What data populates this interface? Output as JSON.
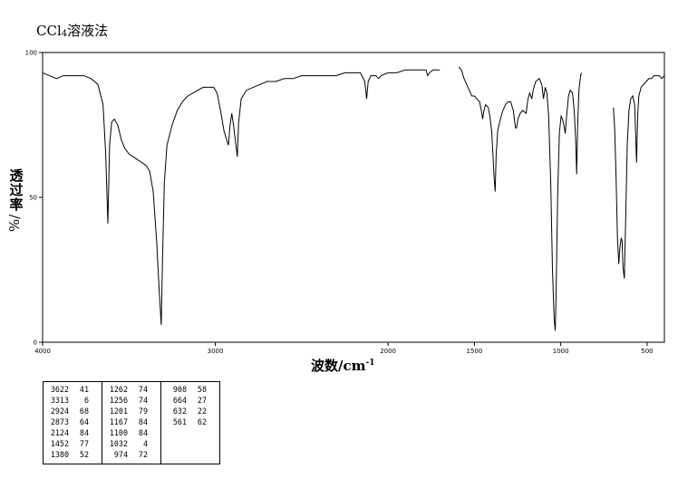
{
  "title": {
    "main": "CCl",
    "sub": "4",
    "suffix": "溶液法"
  },
  "ylabel": {
    "text": "透过率",
    "unit": "%/"
  },
  "xlabel": {
    "text": "波数/cm",
    "sup": "-1"
  },
  "chart_data": {
    "type": "line",
    "xlim": [
      4000,
      400
    ],
    "ylim": [
      0,
      100
    ],
    "x_ticks": [
      4000,
      3000,
      2000,
      1500,
      1000,
      500
    ],
    "x_tick_labels": [
      "4000",
      "3000",
      "2000",
      "1500",
      "1000",
      "500"
    ],
    "y_ticks": [
      0,
      50,
      100
    ],
    "y_tick_labels": [
      "0",
      "50",
      "100"
    ],
    "grid": false,
    "series": [
      {
        "segment": 1,
        "points": [
          [
            4000,
            93
          ],
          [
            3960,
            92
          ],
          [
            3920,
            91
          ],
          [
            3880,
            92
          ],
          [
            3820,
            92
          ],
          [
            3760,
            92
          ],
          [
            3720,
            91
          ],
          [
            3680,
            89
          ],
          [
            3650,
            82
          ],
          [
            3635,
            65
          ],
          [
            3622,
            41
          ],
          [
            3612,
            68
          ],
          [
            3600,
            76
          ],
          [
            3585,
            77
          ],
          [
            3565,
            75
          ],
          [
            3545,
            70
          ],
          [
            3525,
            67
          ],
          [
            3500,
            65
          ],
          [
            3475,
            64
          ],
          [
            3450,
            63
          ],
          [
            3425,
            62
          ],
          [
            3400,
            61
          ],
          [
            3380,
            59
          ],
          [
            3360,
            52
          ],
          [
            3340,
            35
          ],
          [
            3325,
            18
          ],
          [
            3313,
            6
          ],
          [
            3305,
            30
          ],
          [
            3295,
            55
          ],
          [
            3280,
            68
          ],
          [
            3250,
            75
          ],
          [
            3220,
            80
          ],
          [
            3190,
            83
          ],
          [
            3160,
            85
          ],
          [
            3130,
            86
          ],
          [
            3100,
            87
          ],
          [
            3070,
            88
          ],
          [
            3040,
            88
          ],
          [
            3010,
            88
          ],
          [
            2990,
            86
          ],
          [
            2970,
            80
          ],
          [
            2950,
            73
          ],
          [
            2935,
            70
          ],
          [
            2924,
            68
          ],
          [
            2915,
            75
          ],
          [
            2905,
            79
          ],
          [
            2895,
            75
          ],
          [
            2885,
            70
          ],
          [
            2873,
            64
          ],
          [
            2865,
            76
          ],
          [
            2850,
            84
          ],
          [
            2820,
            87
          ],
          [
            2780,
            88
          ],
          [
            2740,
            89
          ],
          [
            2700,
            90
          ],
          [
            2650,
            90
          ],
          [
            2600,
            91
          ],
          [
            2550,
            91
          ],
          [
            2500,
            92
          ],
          [
            2450,
            92
          ],
          [
            2400,
            92
          ],
          [
            2350,
            92
          ],
          [
            2300,
            92
          ],
          [
            2250,
            93
          ],
          [
            2200,
            93
          ],
          [
            2160,
            93
          ],
          [
            2135,
            90
          ],
          [
            2124,
            84
          ],
          [
            2115,
            90
          ],
          [
            2100,
            92
          ],
          [
            2070,
            92
          ],
          [
            2055,
            91
          ],
          [
            2040,
            92
          ],
          [
            2000,
            93
          ],
          [
            1950,
            93
          ],
          [
            1900,
            94
          ],
          [
            1850,
            94
          ],
          [
            1800,
            94
          ],
          [
            1780,
            94
          ],
          [
            1770,
            92
          ],
          [
            1760,
            93
          ],
          [
            1740,
            94
          ],
          [
            1720,
            94
          ],
          [
            1700,
            94
          ]
        ]
      },
      {
        "segment": 2,
        "points": [
          [
            1590,
            95
          ],
          [
            1575,
            94
          ],
          [
            1560,
            91
          ],
          [
            1545,
            89
          ],
          [
            1530,
            87
          ],
          [
            1515,
            85
          ],
          [
            1500,
            85
          ],
          [
            1485,
            84
          ],
          [
            1470,
            83
          ],
          [
            1460,
            80
          ],
          [
            1452,
            77
          ],
          [
            1445,
            80
          ],
          [
            1435,
            82
          ],
          [
            1420,
            81
          ],
          [
            1410,
            78
          ],
          [
            1400,
            73
          ],
          [
            1393,
            65
          ],
          [
            1387,
            58
          ],
          [
            1380,
            52
          ],
          [
            1374,
            65
          ],
          [
            1365,
            73
          ],
          [
            1350,
            77
          ],
          [
            1335,
            80
          ],
          [
            1320,
            82
          ],
          [
            1305,
            83
          ],
          [
            1290,
            83
          ],
          [
            1275,
            80
          ],
          [
            1262,
            74
          ],
          [
            1256,
            74
          ],
          [
            1248,
            77
          ],
          [
            1235,
            79
          ],
          [
            1220,
            80
          ],
          [
            1201,
            79
          ],
          [
            1190,
            84
          ],
          [
            1180,
            86
          ],
          [
            1167,
            84
          ],
          [
            1160,
            87
          ],
          [
            1145,
            90
          ],
          [
            1125,
            91
          ],
          [
            1110,
            89
          ],
          [
            1100,
            84
          ],
          [
            1090,
            88
          ],
          [
            1080,
            86
          ],
          [
            1070,
            78
          ],
          [
            1058,
            55
          ],
          [
            1048,
            25
          ],
          [
            1038,
            8
          ],
          [
            1032,
            4
          ],
          [
            1026,
            20
          ],
          [
            1018,
            50
          ],
          [
            1008,
            72
          ],
          [
            998,
            78
          ],
          [
            990,
            77
          ],
          [
            982,
            75
          ],
          [
            974,
            72
          ],
          [
            966,
            78
          ],
          [
            955,
            85
          ],
          [
            945,
            87
          ],
          [
            932,
            86
          ],
          [
            922,
            80
          ],
          [
            914,
            70
          ],
          [
            908,
            58
          ],
          [
            902,
            75
          ],
          [
            895,
            87
          ],
          [
            885,
            92
          ],
          [
            880,
            93
          ]
        ]
      },
      {
        "segment": 3,
        "points": [
          [
            695,
            81
          ],
          [
            688,
            74
          ],
          [
            680,
            58
          ],
          [
            672,
            36
          ],
          [
            664,
            27
          ],
          [
            657,
            33
          ],
          [
            650,
            36
          ],
          [
            645,
            35
          ],
          [
            640,
            26
          ],
          [
            632,
            22
          ],
          [
            625,
            40
          ],
          [
            615,
            68
          ],
          [
            605,
            80
          ],
          [
            595,
            84
          ],
          [
            583,
            85
          ],
          [
            572,
            82
          ],
          [
            561,
            62
          ],
          [
            555,
            78
          ],
          [
            548,
            85
          ],
          [
            535,
            88
          ],
          [
            520,
            89
          ],
          [
            505,
            90
          ],
          [
            490,
            91
          ],
          [
            475,
            91
          ],
          [
            460,
            92
          ],
          [
            445,
            92
          ],
          [
            430,
            92
          ],
          [
            415,
            91
          ],
          [
            400,
            92
          ]
        ]
      }
    ],
    "peak_table": [
      [
        [
          "3622",
          "41"
        ],
        [
          "3313",
          "6"
        ],
        [
          "2924",
          "68"
        ],
        [
          "2873",
          "64"
        ],
        [
          "2124",
          "84"
        ],
        [
          "1452",
          "77"
        ],
        [
          "1380",
          "52"
        ]
      ],
      [
        [
          "1262",
          "74"
        ],
        [
          "1256",
          "74"
        ],
        [
          "1201",
          "79"
        ],
        [
          "1167",
          "84"
        ],
        [
          "1100",
          "84"
        ],
        [
          "1032",
          "4"
        ],
        [
          "974",
          "72"
        ]
      ],
      [
        [
          "908",
          "58"
        ],
        [
          "664",
          "27"
        ],
        [
          "632",
          "22"
        ],
        [
          "561",
          "62"
        ]
      ]
    ]
  }
}
